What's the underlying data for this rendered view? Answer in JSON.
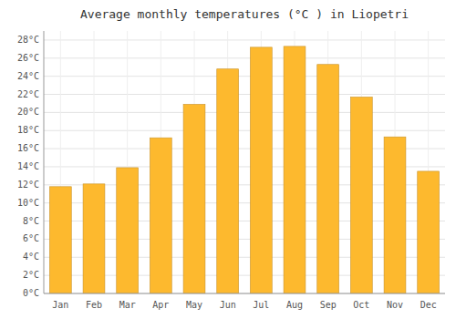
{
  "chart_data": {
    "type": "bar",
    "title": "Average monthly temperatures (°C ) in Liopetri",
    "categories": [
      "Jan",
      "Feb",
      "Mar",
      "Apr",
      "May",
      "Jun",
      "Jul",
      "Aug",
      "Sep",
      "Oct",
      "Nov",
      "Dec"
    ],
    "values": [
      11.8,
      12.1,
      13.9,
      17.2,
      20.9,
      24.8,
      27.2,
      27.3,
      25.3,
      21.7,
      17.3,
      13.5
    ],
    "color": "#FDB92E",
    "ylim": [
      0,
      29
    ],
    "yticks": [
      {
        "value": 0,
        "label": "0°C"
      },
      {
        "value": 2,
        "label": "2°C"
      },
      {
        "value": 4,
        "label": "4°C"
      },
      {
        "value": 6,
        "label": "6°C"
      },
      {
        "value": 8,
        "label": "8°C"
      },
      {
        "value": 10,
        "label": "10°C"
      },
      {
        "value": 12,
        "label": "12°C"
      },
      {
        "value": 14,
        "label": "14°C"
      },
      {
        "value": 16,
        "label": "16°C"
      },
      {
        "value": 18,
        "label": "18°C"
      },
      {
        "value": 20,
        "label": "20°C"
      },
      {
        "value": 22,
        "label": "22°C"
      },
      {
        "value": 24,
        "label": "24°C"
      },
      {
        "value": 26,
        "label": "26°C"
      },
      {
        "value": 28,
        "label": "28°C"
      }
    ],
    "grid": true
  }
}
